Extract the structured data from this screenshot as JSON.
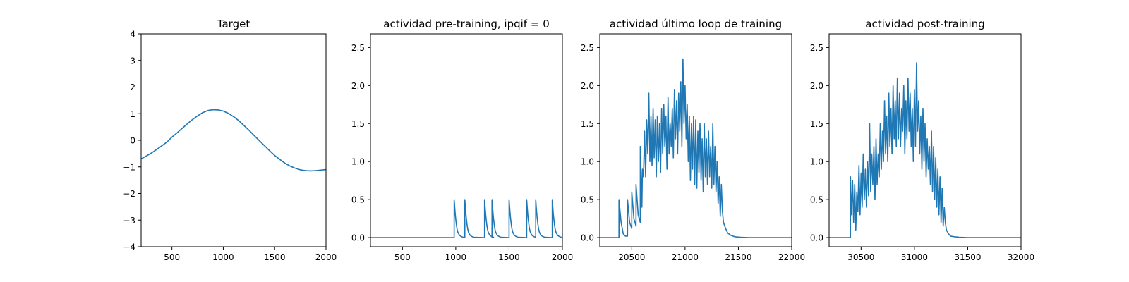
{
  "chart_data": [
    {
      "type": "line",
      "title": "Target",
      "xlim": [
        200,
        2000
      ],
      "ylim": [
        -4,
        4
      ],
      "xticks": [
        500,
        1000,
        1500,
        2000
      ],
      "yticks": [
        -4,
        -3,
        -2,
        -1,
        0,
        1,
        2,
        3,
        4
      ],
      "xtick_labels": [
        "500",
        "1000",
        "1500",
        "2000"
      ],
      "ytick_labels": [
        "−4",
        "−3",
        "−2",
        "−1",
        "0",
        "1",
        "2",
        "3",
        "4"
      ],
      "grid": false,
      "series": [
        {
          "color": "#1f77b4",
          "x": [
            200,
            250,
            300,
            350,
            400,
            450,
            500,
            550,
            600,
            650,
            700,
            750,
            800,
            850,
            900,
            950,
            1000,
            1050,
            1100,
            1150,
            1200,
            1250,
            1300,
            1350,
            1400,
            1450,
            1500,
            1550,
            1600,
            1650,
            1700,
            1750,
            1800,
            1850,
            1900,
            1950,
            2000
          ],
          "y": [
            -0.7,
            -0.59,
            -0.48,
            -0.35,
            -0.21,
            -0.07,
            0.12,
            0.28,
            0.45,
            0.62,
            0.78,
            0.92,
            1.04,
            1.12,
            1.15,
            1.14,
            1.1,
            1.01,
            0.89,
            0.74,
            0.56,
            0.38,
            0.18,
            -0.01,
            -0.2,
            -0.39,
            -0.57,
            -0.72,
            -0.86,
            -0.97,
            -1.05,
            -1.11,
            -1.14,
            -1.15,
            -1.14,
            -1.12,
            -1.1
          ]
        }
      ]
    },
    {
      "type": "line",
      "title": "actividad pre-training, ipqif = 0",
      "xlim": [
        200,
        2000
      ],
      "ylim": [
        -0.12,
        2.68
      ],
      "xticks": [
        500,
        1000,
        1500,
        2000
      ],
      "yticks": [
        0.0,
        0.5,
        1.0,
        1.5,
        2.0,
        2.5
      ],
      "xtick_labels": [
        "500",
        "1000",
        "1500",
        "2000"
      ],
      "ytick_labels": [
        "0.0",
        "0.5",
        "1.0",
        "1.5",
        "2.0",
        "2.5"
      ],
      "grid": false,
      "series": [
        {
          "color": "#1f77b4",
          "x": [
            200,
            985,
            985,
            989,
            993,
            997,
            1001,
            1005,
            1009,
            1014,
            1020,
            1027,
            1035,
            1045,
            1058,
            1070,
            1085,
            1085,
            1089,
            1093,
            1097,
            1101,
            1105,
            1109,
            1114,
            1120,
            1127,
            1135,
            1145,
            1158,
            1170,
            1270,
            1270,
            1274,
            1278,
            1282,
            1286,
            1290,
            1294,
            1299,
            1305,
            1312,
            1320,
            1330,
            1343,
            1355,
            1340,
            1340,
            1344,
            1348,
            1352,
            1356,
            1360,
            1364,
            1369,
            1375,
            1382,
            1390,
            1400,
            1413,
            1425,
            1500,
            1500,
            1504,
            1508,
            1512,
            1516,
            1520,
            1524,
            1529,
            1535,
            1542,
            1550,
            1560,
            1573,
            1585,
            1665,
            1665,
            1669,
            1673,
            1677,
            1681,
            1685,
            1689,
            1694,
            1700,
            1707,
            1715,
            1725,
            1738,
            1750,
            1750,
            1750,
            1754,
            1758,
            1762,
            1766,
            1770,
            1774,
            1779,
            1785,
            1792,
            1800,
            1810,
            1823,
            1835,
            1905,
            1905,
            1909,
            1913,
            1917,
            1921,
            1925,
            1929,
            1934,
            1940,
            1947,
            1955,
            1965,
            1978,
            1990,
            2000
          ],
          "y": [
            0,
            0,
            0.5,
            0.42,
            0.35,
            0.28,
            0.23,
            0.18,
            0.14,
            0.1,
            0.07,
            0.05,
            0.03,
            0.02,
            0.01,
            0.005,
            0,
            0.5,
            0.42,
            0.35,
            0.28,
            0.23,
            0.18,
            0.14,
            0.1,
            0.07,
            0.05,
            0.03,
            0.02,
            0.01,
            0.005,
            0,
            0.5,
            0.42,
            0.35,
            0.28,
            0.23,
            0.18,
            0.14,
            0.1,
            0.07,
            0.05,
            0.03,
            0.02,
            0.01,
            0.005,
            0,
            0.5,
            0.42,
            0.35,
            0.28,
            0.23,
            0.18,
            0.14,
            0.1,
            0.07,
            0.05,
            0.03,
            0.02,
            0.01,
            0.005,
            0,
            0.5,
            0.42,
            0.35,
            0.28,
            0.23,
            0.18,
            0.14,
            0.1,
            0.07,
            0.05,
            0.03,
            0.02,
            0.01,
            0.005,
            0,
            0.5,
            0.42,
            0.35,
            0.28,
            0.23,
            0.18,
            0.14,
            0.1,
            0.07,
            0.05,
            0.03,
            0.02,
            0.01,
            0.005,
            0,
            0.5,
            0.42,
            0.35,
            0.28,
            0.23,
            0.18,
            0.14,
            0.1,
            0.07,
            0.05,
            0.03,
            0.02,
            0.01,
            0.005,
            0,
            0.5,
            0.42,
            0.35,
            0.28,
            0.23,
            0.18,
            0.14,
            0.1,
            0.07,
            0.05,
            0.03,
            0.02,
            0.01,
            0.005,
            0.002
          ]
        }
      ]
    },
    {
      "type": "line",
      "title": "actividad último loop de training",
      "xlim": [
        20200,
        22000
      ],
      "ylim": [
        -0.12,
        2.68
      ],
      "xticks": [
        20500,
        21000,
        21500,
        22000
      ],
      "yticks": [
        0.0,
        0.5,
        1.0,
        1.5,
        2.0,
        2.5
      ],
      "xtick_labels": [
        "20500",
        "21000",
        "21500",
        "22000"
      ],
      "ytick_labels": [
        "0.0",
        "0.5",
        "1.0",
        "1.5",
        "2.0",
        "2.5"
      ],
      "grid": false,
      "series": [
        {
          "color": "#1f77b4",
          "x": [
            20200,
            20380,
            20380,
            20400,
            20420,
            20440,
            20460,
            20460,
            20480,
            20500,
            20500,
            20520,
            20540,
            20540,
            20560,
            20580,
            20580,
            20595,
            20600,
            20610,
            20620,
            20630,
            20640,
            20650,
            20660,
            20670,
            20680,
            20690,
            20700,
            20710,
            20720,
            20730,
            20740,
            20750,
            20760,
            20770,
            20780,
            20790,
            20800,
            20810,
            20820,
            20830,
            20840,
            20850,
            20860,
            20870,
            20880,
            20890,
            20900,
            20910,
            20920,
            20930,
            20940,
            20950,
            20960,
            20970,
            20980,
            20990,
            21000,
            21010,
            21020,
            21030,
            21040,
            21050,
            21060,
            21070,
            21080,
            21090,
            21100,
            21110,
            21120,
            21130,
            21140,
            21150,
            21160,
            21170,
            21180,
            21190,
            21200,
            21210,
            21220,
            21230,
            21240,
            21250,
            21260,
            21270,
            21280,
            21290,
            21300,
            21310,
            21320,
            21330,
            21340,
            21350,
            21360,
            21380,
            21400,
            21430,
            21470,
            21520,
            21600,
            21700,
            21800,
            21900,
            22000
          ],
          "y": [
            0,
            0,
            0.5,
            0.2,
            0.05,
            0.02,
            0.02,
            0.5,
            0.2,
            0.12,
            0.6,
            0.25,
            0.15,
            0.7,
            0.3,
            0.2,
            1.2,
            0.4,
            0.9,
            0.8,
            1.4,
            0.8,
            1.55,
            1.1,
            1.9,
            1.0,
            1.6,
            0.95,
            1.7,
            1.05,
            1.55,
            0.8,
            1.6,
            1.0,
            1.5,
            0.85,
            1.7,
            1.1,
            1.75,
            1.2,
            1.6,
            0.9,
            1.85,
            1.1,
            1.5,
            1.2,
            1.7,
            1.05,
            1.95,
            1.3,
            1.8,
            1.1,
            1.9,
            1.4,
            2.05,
            1.2,
            2.35,
            1.5,
            2.0,
            1.3,
            1.75,
            1.0,
            1.6,
            0.75,
            1.5,
            0.9,
            1.6,
            0.7,
            1.55,
            0.65,
            1.4,
            0.85,
            1.5,
            0.75,
            1.3,
            0.6,
            1.5,
            0.8,
            1.3,
            0.7,
            1.4,
            0.8,
            1.2,
            0.65,
            1.5,
            0.7,
            1.2,
            0.6,
            1.0,
            0.45,
            0.8,
            0.28,
            0.7,
            0.35,
            0.2,
            0.12,
            0.06,
            0.03,
            0.01,
            0.005,
            0,
            0,
            0,
            0,
            0
          ]
        }
      ]
    },
    {
      "type": "line",
      "title": "actividad post-training",
      "xlim": [
        30200,
        32000
      ],
      "ylim": [
        -0.12,
        2.68
      ],
      "xticks": [
        30500,
        31000,
        31500,
        32000
      ],
      "yticks": [
        0.0,
        0.5,
        1.0,
        1.5,
        2.0,
        2.5
      ],
      "xtick_labels": [
        "30500",
        "31000",
        "31500",
        "32000"
      ],
      "ytick_labels": [
        "0.0",
        "0.5",
        "1.0",
        "1.5",
        "2.0",
        "2.5"
      ],
      "grid": false,
      "series": [
        {
          "color": "#1f77b4",
          "x": [
            30200,
            30400,
            30400,
            30410,
            30420,
            30430,
            30440,
            30450,
            30460,
            30470,
            30480,
            30490,
            30500,
            30510,
            30520,
            30530,
            30540,
            30550,
            30560,
            30570,
            30580,
            30590,
            30600,
            30610,
            30620,
            30630,
            30640,
            30650,
            30660,
            30670,
            30680,
            30690,
            30700,
            30710,
            30720,
            30730,
            30740,
            30750,
            30760,
            30770,
            30780,
            30790,
            30800,
            30810,
            30820,
            30830,
            30840,
            30850,
            30860,
            30870,
            30880,
            30890,
            30900,
            30910,
            30920,
            30930,
            30940,
            30950,
            30960,
            30970,
            30980,
            30990,
            31000,
            31010,
            31020,
            31030,
            31040,
            31050,
            31060,
            31070,
            31080,
            31090,
            31100,
            31110,
            31120,
            31130,
            31140,
            31150,
            31160,
            31170,
            31180,
            31190,
            31200,
            31210,
            31220,
            31230,
            31240,
            31250,
            31260,
            31270,
            31280,
            31290,
            31300,
            31320,
            31340,
            31380,
            31420,
            31500,
            31600,
            31700,
            31800,
            31900,
            32000
          ],
          "y": [
            0,
            0,
            0.8,
            0.3,
            0.75,
            0.2,
            0.7,
            0.1,
            0.6,
            0.35,
            0.95,
            0.3,
            0.85,
            0.4,
            1.1,
            0.5,
            0.9,
            0.4,
            1.0,
            0.55,
            1.5,
            0.6,
            1.1,
            0.7,
            1.2,
            0.5,
            1.3,
            0.7,
            1.1,
            0.8,
            1.5,
            0.9,
            1.4,
            1.0,
            1.8,
            1.1,
            1.6,
            1.0,
            1.9,
            1.2,
            1.7,
            1.1,
            2.0,
            1.3,
            1.8,
            1.2,
            2.1,
            1.3,
            1.9,
            1.2,
            1.7,
            1.4,
            2.0,
            1.1,
            1.8,
            1.3,
            2.1,
            1.4,
            1.9,
            1.2,
            1.7,
            1.0,
            1.95,
            1.2,
            2.3,
            1.4,
            1.8,
            1.1,
            1.6,
            0.9,
            1.7,
            1.0,
            1.5,
            0.8,
            1.3,
            0.9,
            1.2,
            0.7,
            1.4,
            0.6,
            1.2,
            0.5,
            1.05,
            0.4,
            0.9,
            0.3,
            0.8,
            0.2,
            0.65,
            0.15,
            0.4,
            0.2,
            0.1,
            0.05,
            0.02,
            0.01,
            0.005,
            0,
            0,
            0,
            0,
            0,
            0
          ]
        }
      ]
    }
  ]
}
